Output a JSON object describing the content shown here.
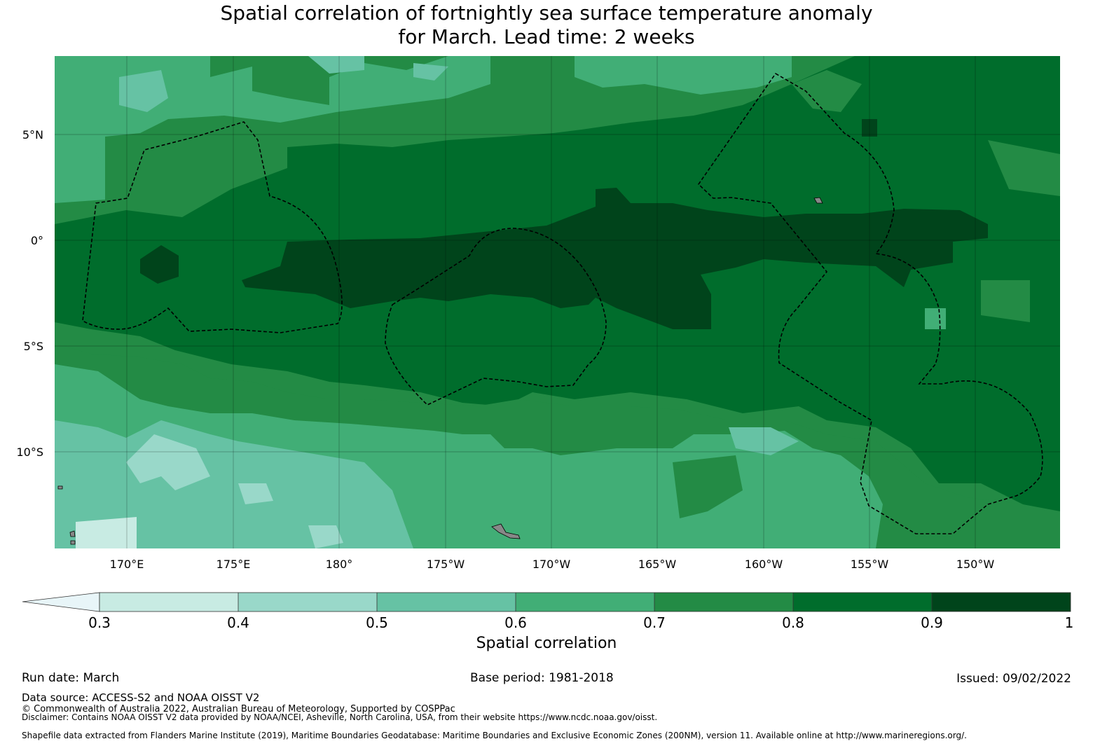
{
  "title": {
    "line1": "Spatial correlation of fortnightly sea surface temperature anomaly",
    "line2": "for March. Lead time: 2 weeks"
  },
  "map": {
    "lat_ticks": [
      "5°N",
      "0°",
      "5°S",
      "10°S"
    ],
    "lon_ticks": [
      "170°E",
      "175°E",
      "180°",
      "175°W",
      "170°W",
      "165°W",
      "160°W",
      "155°W",
      "150°W"
    ],
    "palette": {
      "c3": "#c8ebe3",
      "c4": "#99d8c9",
      "c5": "#66c2a4",
      "c6": "#41ae76",
      "c7": "#238b45",
      "c8": "#006d2c",
      "c9": "#00441b",
      "under": "#e8f5f8"
    },
    "eez_line_color": "#000000",
    "land_color": "#888888"
  },
  "chart_data": {
    "type": "heatmap",
    "variable": "Spatial correlation",
    "region": {
      "lon_range": [
        166.6,
        213.8
      ],
      "lat_range": [
        -14.6,
        8.6
      ]
    },
    "colorbar": {
      "label": "Spatial correlation",
      "bounds": [
        0.3,
        0.4,
        0.5,
        0.6,
        0.7,
        0.8,
        0.9,
        1
      ],
      "tick_labels": [
        "0.3",
        "0.4",
        "0.5",
        "0.6",
        "0.7",
        "0.8",
        "0.9",
        "1"
      ],
      "extend": "min"
    },
    "bands_description": "Highest correlation (0.9-1) along the equator from about 180° to 155°W; 0.8-0.9 across 5°N to 8°S; values decrease toward the south-west (0.3-0.6 near 170°E-175°W, 10°S-14°S)."
  },
  "footer": {
    "run_date": "Run date: March",
    "base_period": "Base period: 1981-2018",
    "issued": "Issued: 09/02/2022",
    "data_source": "Data source: ACCESS-S2 and NOAA OISST V2",
    "copyright": "© Commonwealth of Australia 2022, Australian Bureau of Meteorology, Supported by COSPPac",
    "disclaimer": "Disclaimer: Contains NOAA OISST V2 data provided by NOAA/NCEI, Asheville, North Carolina, USA, from their website https://www.ncdc.noaa.gov/oisst.",
    "shapefile": "Shapefile data extracted from Flanders Marine Institute (2019), Maritime Boundaries Geodatabase: Maritime Boundaries and Exclusive Economic Zones (200NM), version 11. Available online at http://www.marineregions.org/."
  }
}
